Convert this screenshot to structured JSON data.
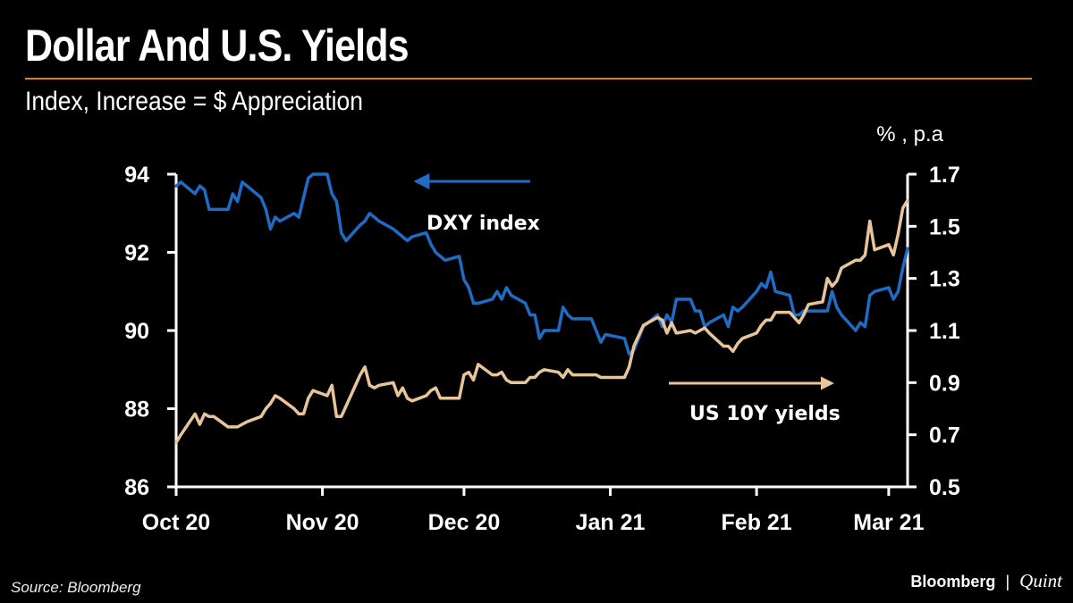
{
  "title": "Dollar And U.S. Yields",
  "subtitle": "Index, Increase = $ Appreciation",
  "source": "Source: Bloomberg",
  "brand": {
    "primary": "Bloomberg",
    "separator": "|",
    "secondary": "Quint"
  },
  "colors": {
    "background": "#000000",
    "accent_rule": "#e07a2c",
    "dxy": "#1f6cc4",
    "us10y": "#e8c49a",
    "axis": "#ffffff"
  },
  "chart_data": {
    "type": "line",
    "title": "Dollar And U.S. Yields",
    "subtitle": "Index, Increase = $ Appreciation",
    "x_tick_labels": [
      "Oct 20",
      "Nov 20",
      "Dec 20",
      "Jan 21",
      "Feb 21",
      "Mar 21"
    ],
    "x_tick_dates": [
      "2020-10-01",
      "2020-11-01",
      "2020-12-01",
      "2021-01-01",
      "2021-02-01",
      "2021-03-01"
    ],
    "xlim": [
      "2020-10-01",
      "2021-03-05"
    ],
    "y_left": {
      "label": "",
      "ticks": [
        "86",
        "88",
        "90",
        "92",
        "94"
      ],
      "lim": [
        86,
        94
      ]
    },
    "y_right": {
      "unit_label": "% , p.a",
      "ticks": [
        "0.5",
        "0.7",
        "0.9",
        "1.1",
        "1.3",
        "1.5",
        "1.7"
      ],
      "lim": [
        0.5,
        1.7
      ]
    },
    "grid": false,
    "annotations": [
      {
        "text": "DXY index",
        "series": "DXY index",
        "arrow": "left"
      },
      {
        "text": "US 10Y yields",
        "series": "US 10Y yields",
        "arrow": "right"
      }
    ],
    "series": [
      {
        "name": "DXY index",
        "axis": "left",
        "color": "#1f6cc4",
        "points": [
          [
            "2020-10-01",
            93.7
          ],
          [
            "2020-10-02",
            93.8
          ],
          [
            "2020-10-05",
            93.5
          ],
          [
            "2020-10-06",
            93.7
          ],
          [
            "2020-10-07",
            93.6
          ],
          [
            "2020-10-08",
            93.1
          ],
          [
            "2020-10-09",
            93.1
          ],
          [
            "2020-10-12",
            93.1
          ],
          [
            "2020-10-13",
            93.5
          ],
          [
            "2020-10-14",
            93.3
          ],
          [
            "2020-10-15",
            93.8
          ],
          [
            "2020-10-16",
            93.7
          ],
          [
            "2020-10-19",
            93.4
          ],
          [
            "2020-10-20",
            93.1
          ],
          [
            "2020-10-21",
            92.6
          ],
          [
            "2020-10-22",
            92.9
          ],
          [
            "2020-10-23",
            92.8
          ],
          [
            "2020-10-26",
            93.0
          ],
          [
            "2020-10-27",
            92.9
          ],
          [
            "2020-10-28",
            93.4
          ],
          [
            "2020-10-29",
            93.9
          ],
          [
            "2020-10-30",
            94.0
          ],
          [
            "2020-11-02",
            94.0
          ],
          [
            "2020-11-03",
            93.5
          ],
          [
            "2020-11-04",
            93.3
          ],
          [
            "2020-11-05",
            92.5
          ],
          [
            "2020-11-06",
            92.3
          ],
          [
            "2020-11-09",
            92.7
          ],
          [
            "2020-11-10",
            92.8
          ],
          [
            "2020-11-11",
            93.0
          ],
          [
            "2020-11-12",
            92.9
          ],
          [
            "2020-11-13",
            92.8
          ],
          [
            "2020-11-16",
            92.6
          ],
          [
            "2020-11-17",
            92.5
          ],
          [
            "2020-11-18",
            92.4
          ],
          [
            "2020-11-19",
            92.3
          ],
          [
            "2020-11-20",
            92.4
          ],
          [
            "2020-11-23",
            92.5
          ],
          [
            "2020-11-24",
            92.2
          ],
          [
            "2020-11-25",
            92.0
          ],
          [
            "2020-11-26",
            91.9
          ],
          [
            "2020-11-27",
            91.8
          ],
          [
            "2020-11-30",
            91.9
          ],
          [
            "2020-12-01",
            91.3
          ],
          [
            "2020-12-02",
            91.1
          ],
          [
            "2020-12-03",
            90.7
          ],
          [
            "2020-12-04",
            90.7
          ],
          [
            "2020-12-07",
            90.8
          ],
          [
            "2020-12-08",
            91.0
          ],
          [
            "2020-12-09",
            90.8
          ],
          [
            "2020-12-10",
            91.1
          ],
          [
            "2020-12-11",
            90.9
          ],
          [
            "2020-12-14",
            90.7
          ],
          [
            "2020-12-15",
            90.4
          ],
          [
            "2020-12-16",
            90.4
          ],
          [
            "2020-12-17",
            89.8
          ],
          [
            "2020-12-18",
            90.0
          ],
          [
            "2020-12-21",
            90.0
          ],
          [
            "2020-12-22",
            90.6
          ],
          [
            "2020-12-23",
            90.4
          ],
          [
            "2020-12-24",
            90.3
          ],
          [
            "2020-12-28",
            90.3
          ],
          [
            "2020-12-29",
            90.0
          ],
          [
            "2020-12-30",
            89.7
          ],
          [
            "2020-12-31",
            89.9
          ],
          [
            "2021-01-04",
            89.8
          ],
          [
            "2021-01-05",
            89.4
          ],
          [
            "2021-01-06",
            89.5
          ],
          [
            "2021-01-07",
            89.8
          ],
          [
            "2021-01-08",
            90.1
          ],
          [
            "2021-01-11",
            90.4
          ],
          [
            "2021-01-12",
            90.1
          ],
          [
            "2021-01-13",
            90.4
          ],
          [
            "2021-01-14",
            90.2
          ],
          [
            "2021-01-15",
            90.8
          ],
          [
            "2021-01-18",
            90.8
          ],
          [
            "2021-01-19",
            90.5
          ],
          [
            "2021-01-20",
            90.5
          ],
          [
            "2021-01-21",
            90.1
          ],
          [
            "2021-01-22",
            90.2
          ],
          [
            "2021-01-25",
            90.4
          ],
          [
            "2021-01-26",
            90.1
          ],
          [
            "2021-01-27",
            90.6
          ],
          [
            "2021-01-28",
            90.5
          ],
          [
            "2021-01-29",
            90.6
          ],
          [
            "2021-02-01",
            91.0
          ],
          [
            "2021-02-02",
            91.2
          ],
          [
            "2021-02-03",
            91.1
          ],
          [
            "2021-02-04",
            91.5
          ],
          [
            "2021-02-05",
            91.0
          ],
          [
            "2021-02-08",
            90.9
          ],
          [
            "2021-02-09",
            90.4
          ],
          [
            "2021-02-10",
            90.4
          ],
          [
            "2021-02-11",
            90.5
          ],
          [
            "2021-02-12",
            90.5
          ],
          [
            "2021-02-15",
            90.5
          ],
          [
            "2021-02-16",
            90.5
          ],
          [
            "2021-02-17",
            91.0
          ],
          [
            "2021-02-18",
            90.6
          ],
          [
            "2021-02-19",
            90.4
          ],
          [
            "2021-02-22",
            90.0
          ],
          [
            "2021-02-23",
            90.2
          ],
          [
            "2021-02-24",
            90.1
          ],
          [
            "2021-02-25",
            90.9
          ],
          [
            "2021-02-26",
            91.0
          ],
          [
            "2021-03-01",
            91.1
          ],
          [
            "2021-03-02",
            90.8
          ],
          [
            "2021-03-03",
            91.0
          ],
          [
            "2021-03-04",
            91.6
          ],
          [
            "2021-03-05",
            92.1
          ]
        ]
      },
      {
        "name": "US 10Y yields",
        "axis": "right",
        "color": "#e8c49a",
        "points": [
          [
            "2020-10-01",
            0.67
          ],
          [
            "2020-10-02",
            0.7
          ],
          [
            "2020-10-05",
            0.78
          ],
          [
            "2020-10-06",
            0.74
          ],
          [
            "2020-10-07",
            0.78
          ],
          [
            "2020-10-08",
            0.77
          ],
          [
            "2020-10-09",
            0.77
          ],
          [
            "2020-10-12",
            0.73
          ],
          [
            "2020-10-13",
            0.73
          ],
          [
            "2020-10-14",
            0.73
          ],
          [
            "2020-10-15",
            0.74
          ],
          [
            "2020-10-16",
            0.75
          ],
          [
            "2020-10-19",
            0.77
          ],
          [
            "2020-10-20",
            0.8
          ],
          [
            "2020-10-21",
            0.82
          ],
          [
            "2020-10-22",
            0.85
          ],
          [
            "2020-10-23",
            0.84
          ],
          [
            "2020-10-26",
            0.8
          ],
          [
            "2020-10-27",
            0.78
          ],
          [
            "2020-10-28",
            0.78
          ],
          [
            "2020-10-29",
            0.84
          ],
          [
            "2020-10-30",
            0.87
          ],
          [
            "2020-11-02",
            0.85
          ],
          [
            "2020-11-03",
            0.89
          ],
          [
            "2020-11-04",
            0.77
          ],
          [
            "2020-11-05",
            0.77
          ],
          [
            "2020-11-06",
            0.81
          ],
          [
            "2020-11-09",
            0.93
          ],
          [
            "2020-11-10",
            0.96
          ],
          [
            "2020-11-11",
            0.89
          ],
          [
            "2020-11-12",
            0.88
          ],
          [
            "2020-11-13",
            0.89
          ],
          [
            "2020-11-16",
            0.9
          ],
          [
            "2020-11-17",
            0.85
          ],
          [
            "2020-11-18",
            0.88
          ],
          [
            "2020-11-19",
            0.84
          ],
          [
            "2020-11-20",
            0.83
          ],
          [
            "2020-11-23",
            0.85
          ],
          [
            "2020-11-24",
            0.87
          ],
          [
            "2020-11-25",
            0.88
          ],
          [
            "2020-11-26",
            0.84
          ],
          [
            "2020-11-27",
            0.84
          ],
          [
            "2020-11-30",
            0.84
          ],
          [
            "2020-12-01",
            0.93
          ],
          [
            "2020-12-02",
            0.94
          ],
          [
            "2020-12-03",
            0.91
          ],
          [
            "2020-12-04",
            0.97
          ],
          [
            "2020-12-07",
            0.93
          ],
          [
            "2020-12-08",
            0.93
          ],
          [
            "2020-12-09",
            0.94
          ],
          [
            "2020-12-10",
            0.91
          ],
          [
            "2020-12-11",
            0.9
          ],
          [
            "2020-12-14",
            0.9
          ],
          [
            "2020-12-15",
            0.92
          ],
          [
            "2020-12-16",
            0.92
          ],
          [
            "2020-12-17",
            0.94
          ],
          [
            "2020-12-18",
            0.95
          ],
          [
            "2020-12-21",
            0.94
          ],
          [
            "2020-12-22",
            0.92
          ],
          [
            "2020-12-23",
            0.95
          ],
          [
            "2020-12-24",
            0.93
          ],
          [
            "2020-12-28",
            0.93
          ],
          [
            "2020-12-29",
            0.93
          ],
          [
            "2020-12-30",
            0.92
          ],
          [
            "2020-12-31",
            0.92
          ],
          [
            "2021-01-04",
            0.92
          ],
          [
            "2021-01-05",
            0.96
          ],
          [
            "2021-01-06",
            1.04
          ],
          [
            "2021-01-07",
            1.08
          ],
          [
            "2021-01-08",
            1.12
          ],
          [
            "2021-01-11",
            1.15
          ],
          [
            "2021-01-12",
            1.14
          ],
          [
            "2021-01-13",
            1.09
          ],
          [
            "2021-01-14",
            1.13
          ],
          [
            "2021-01-15",
            1.09
          ],
          [
            "2021-01-18",
            1.1
          ],
          [
            "2021-01-19",
            1.09
          ],
          [
            "2021-01-20",
            1.1
          ],
          [
            "2021-01-21",
            1.11
          ],
          [
            "2021-01-22",
            1.09
          ],
          [
            "2021-01-25",
            1.04
          ],
          [
            "2021-01-26",
            1.04
          ],
          [
            "2021-01-27",
            1.02
          ],
          [
            "2021-01-28",
            1.05
          ],
          [
            "2021-01-29",
            1.07
          ],
          [
            "2021-02-01",
            1.09
          ],
          [
            "2021-02-02",
            1.12
          ],
          [
            "2021-02-03",
            1.14
          ],
          [
            "2021-02-04",
            1.14
          ],
          [
            "2021-02-05",
            1.17
          ],
          [
            "2021-02-08",
            1.17
          ],
          [
            "2021-02-09",
            1.15
          ],
          [
            "2021-02-10",
            1.13
          ],
          [
            "2021-02-11",
            1.16
          ],
          [
            "2021-02-12",
            1.2
          ],
          [
            "2021-02-15",
            1.21
          ],
          [
            "2021-02-16",
            1.3
          ],
          [
            "2021-02-17",
            1.27
          ],
          [
            "2021-02-18",
            1.29
          ],
          [
            "2021-02-19",
            1.34
          ],
          [
            "2021-02-22",
            1.37
          ],
          [
            "2021-02-23",
            1.37
          ],
          [
            "2021-02-24",
            1.39
          ],
          [
            "2021-02-25",
            1.52
          ],
          [
            "2021-02-26",
            1.41
          ],
          [
            "2021-03-01",
            1.43
          ],
          [
            "2021-03-02",
            1.39
          ],
          [
            "2021-03-03",
            1.47
          ],
          [
            "2021-03-04",
            1.57
          ],
          [
            "2021-03-05",
            1.6
          ]
        ]
      }
    ]
  }
}
